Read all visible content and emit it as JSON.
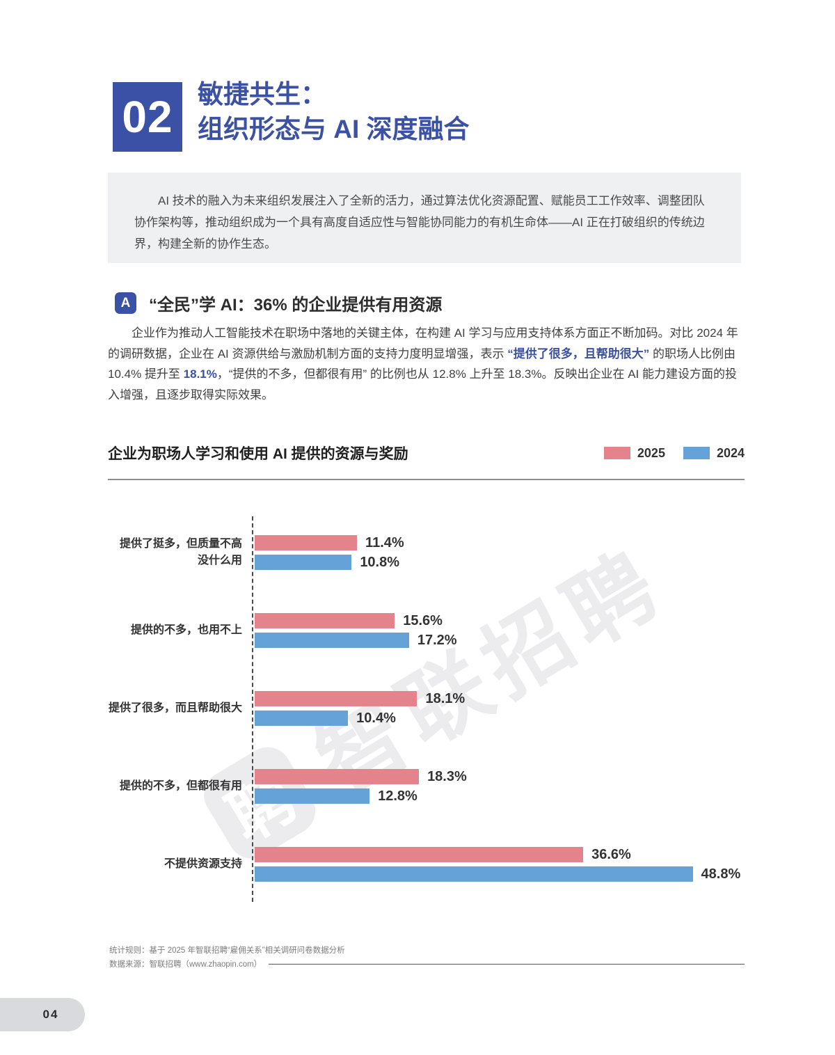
{
  "page": {
    "number": "04"
  },
  "header": {
    "chapter_number": "02",
    "title_line1": "敏捷共生：",
    "title_line2": "组织形态与 AI 深度融合"
  },
  "intro": {
    "text": "AI 技术的融入为未来组织发展注入了全新的活力，通过算法优化资源配置、赋能员工工作效率、调整团队协作架构等，推动组织成为一个具有高度自适应性与智能协同能力的有机生命体——AI 正在打破组织的传统边界，构建全新的协作生态。"
  },
  "section": {
    "badge": "A",
    "title": "“全民”学 AI：36% 的企业提供有用资源"
  },
  "paragraph": {
    "segments": [
      {
        "text": "企业作为推动人工智能技术在职场中落地的关键主体，在构建 AI 学习与应用支持体系方面正不断加码。对比 2024 年的调研数据，企业在 AI 资源供给与激励机制方面的支持力度明显增强，表示 ",
        "style": "normal"
      },
      {
        "text": "“提供了很多，且帮助很大”",
        "style": "highlight"
      },
      {
        "text": " 的职场人比例由 10.4% 提升至 ",
        "style": "normal"
      },
      {
        "text": "18.1%",
        "style": "highlight"
      },
      {
        "text": "，“提供的不多，但都很有用” 的比例也从 12.8% 上升至 18.3%。反映出企业在 AI 能力建设方面的投入增强，且逐步取得实际效果。",
        "style": "normal"
      }
    ]
  },
  "chart_data": {
    "type": "bar",
    "orientation": "horizontal",
    "title": "企业为职场人学习和使用 AI 提供的资源与奖励",
    "categories": [
      "提供了挺多，但质量不高\n没什么用",
      "提供的不多，也用不上",
      "提供了很多，而且帮助很大",
      "提供的不多，但都很有用",
      "不提供资源支持"
    ],
    "series": [
      {
        "name": "2025",
        "color": "#E4838C",
        "values": [
          11.4,
          15.6,
          18.1,
          18.3,
          36.6
        ]
      },
      {
        "name": "2024",
        "color": "#64A2D8",
        "values": [
          10.8,
          17.2,
          10.4,
          12.8,
          48.8
        ]
      }
    ],
    "value_suffix": "%",
    "xlim": [
      0,
      50
    ],
    "grid": false,
    "legend_position": "top-right"
  },
  "watermark": {
    "logo_char": "聘",
    "text": "智联招聘"
  },
  "footnotes": {
    "line1": "统计规则：基于 2025 年智联招聘“雇佣关系”相关调研问卷数据分析",
    "line2": "数据来源：智联招聘（www.zhaopin.com）"
  },
  "colors": {
    "brand_blue": "#3A51A5",
    "series_2025": "#E4838C",
    "series_2024": "#64A2D8",
    "intro_bg": "#EEF0F2",
    "text_dark": "#333333",
    "footnote_gray": "#7D7D7D",
    "watermark_gray": "#ECECEE"
  }
}
